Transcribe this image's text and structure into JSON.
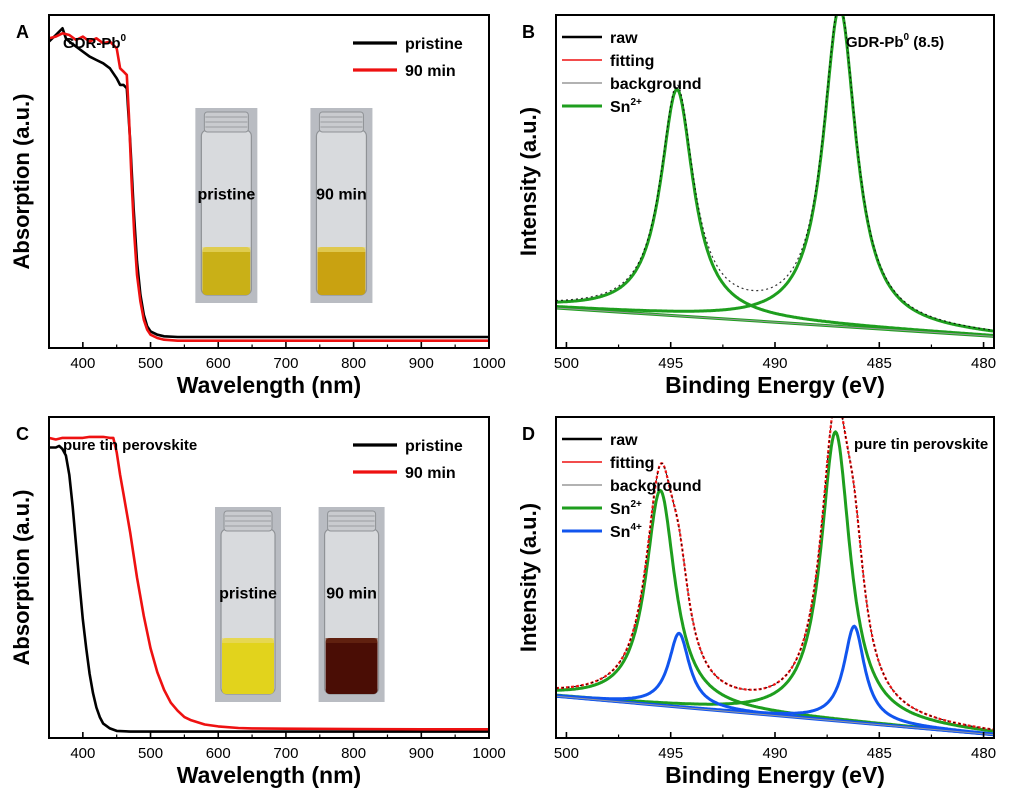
{
  "chart_data": [
    {
      "id": "A",
      "panel_label": "A",
      "type": "line",
      "title": "GDR-Pb",
      "title_sup": "0",
      "xlabel": "Wavelength (nm)",
      "ylabel": "Absorption (a.u.)",
      "xlim": [
        350,
        1000
      ],
      "ylim": [
        0,
        1
      ],
      "x_ticks": [
        400,
        500,
        600,
        700,
        800,
        900,
        1000
      ],
      "legend_position": "top-right",
      "series": [
        {
          "name": "pristine",
          "color": "#000000",
          "points": [
            [
              350,
              0.92
            ],
            [
              360,
              0.94
            ],
            [
              370,
              0.96
            ],
            [
              375,
              0.93
            ],
            [
              380,
              0.92
            ],
            [
              390,
              0.905
            ],
            [
              400,
              0.89
            ],
            [
              410,
              0.875
            ],
            [
              420,
              0.865
            ],
            [
              430,
              0.855
            ],
            [
              440,
              0.84
            ],
            [
              450,
              0.81
            ],
            [
              455,
              0.79
            ],
            [
              460,
              0.79
            ],
            [
              465,
              0.78
            ],
            [
              470,
              0.62
            ],
            [
              475,
              0.42
            ],
            [
              480,
              0.26
            ],
            [
              485,
              0.16
            ],
            [
              490,
              0.1
            ],
            [
              495,
              0.065
            ],
            [
              500,
              0.05
            ],
            [
              510,
              0.04
            ],
            [
              520,
              0.035
            ],
            [
              540,
              0.033
            ],
            [
              600,
              0.033
            ],
            [
              700,
              0.033
            ],
            [
              800,
              0.033
            ],
            [
              900,
              0.033
            ],
            [
              1000,
              0.033
            ]
          ]
        },
        {
          "name": "90 min",
          "color": "#ee1111",
          "points": [
            [
              350,
              0.93
            ],
            [
              360,
              0.935
            ],
            [
              370,
              0.945
            ],
            [
              380,
              0.94
            ],
            [
              390,
              0.925
            ],
            [
              400,
              0.935
            ],
            [
              410,
              0.92
            ],
            [
              420,
              0.93
            ],
            [
              430,
              0.915
            ],
            [
              440,
              0.92
            ],
            [
              450,
              0.9
            ],
            [
              455,
              0.84
            ],
            [
              460,
              0.83
            ],
            [
              465,
              0.82
            ],
            [
              468,
              0.7
            ],
            [
              472,
              0.5
            ],
            [
              476,
              0.34
            ],
            [
              480,
              0.22
            ],
            [
              485,
              0.14
            ],
            [
              490,
              0.085
            ],
            [
              495,
              0.055
            ],
            [
              500,
              0.04
            ],
            [
              510,
              0.03
            ],
            [
              520,
              0.025
            ],
            [
              540,
              0.022
            ],
            [
              600,
              0.022
            ],
            [
              700,
              0.022
            ],
            [
              800,
              0.022
            ],
            [
              900,
              0.022
            ],
            [
              1000,
              0.022
            ]
          ]
        }
      ],
      "vials": [
        {
          "label": "pristine",
          "liquid_color": "#c9b017",
          "dark": false
        },
        {
          "label": "90 min",
          "liquid_color": "#c9a211",
          "dark": false
        }
      ]
    },
    {
      "id": "B",
      "panel_label": "B",
      "type": "line",
      "title": "GDR-Pb",
      "title_sup": "0",
      "title_suffix": " (8.5)",
      "xlabel": "Binding Energy (eV)",
      "ylabel": "Intensity (a.u.)",
      "xlim": [
        500.5,
        479.5
      ],
      "ylim": [
        0,
        1
      ],
      "x_ticks": [
        500,
        495,
        490,
        485,
        480
      ],
      "legend_position": "top-left",
      "legend": [
        {
          "name": "raw",
          "sup": "",
          "color": "#000000",
          "width": 2.5
        },
        {
          "name": "fitting",
          "sup": "",
          "color": "#ee1111",
          "width": 1.5
        },
        {
          "name": "background",
          "sup": "",
          "color": "#999999",
          "width": 1.5
        },
        {
          "name": "Sn",
          "sup": "2+",
          "color": "#1e9e1e",
          "width": 3
        }
      ],
      "background": {
        "x1": 500.5,
        "y1": 0.12,
        "x2": 479.5,
        "y2": 0.035
      },
      "peaks": [
        {
          "component": "Sn2+",
          "center": 494.7,
          "height": 0.68,
          "width": 0.95,
          "color": "#1e9e1e"
        },
        {
          "component": "Sn2+",
          "center": 486.9,
          "height": 0.96,
          "width": 0.95,
          "color": "#1e9e1e"
        }
      ]
    },
    {
      "id": "C",
      "panel_label": "C",
      "type": "line",
      "title": "pure tin perovskite",
      "xlabel": "Wavelength (nm)",
      "ylabel": "Absorption (a.u.)",
      "xlim": [
        350,
        1000
      ],
      "ylim": [
        0,
        1
      ],
      "x_ticks": [
        400,
        500,
        600,
        700,
        800,
        900,
        1000
      ],
      "legend_position": "top-right",
      "series": [
        {
          "name": "pristine",
          "color": "#000000",
          "points": [
            [
              350,
              0.905
            ],
            [
              360,
              0.905
            ],
            [
              365,
              0.91
            ],
            [
              370,
              0.9
            ],
            [
              375,
              0.88
            ],
            [
              380,
              0.82
            ],
            [
              385,
              0.72
            ],
            [
              390,
              0.6
            ],
            [
              395,
              0.48
            ],
            [
              400,
              0.37
            ],
            [
              405,
              0.28
            ],
            [
              410,
              0.2
            ],
            [
              415,
              0.14
            ],
            [
              420,
              0.095
            ],
            [
              425,
              0.065
            ],
            [
              430,
              0.045
            ],
            [
              440,
              0.03
            ],
            [
              450,
              0.022
            ],
            [
              470,
              0.02
            ],
            [
              500,
              0.02
            ],
            [
              600,
              0.02
            ],
            [
              700,
              0.02
            ],
            [
              800,
              0.02
            ],
            [
              900,
              0.02
            ],
            [
              1000,
              0.02
            ]
          ]
        },
        {
          "name": "90 min",
          "color": "#ee1111",
          "points": [
            [
              350,
              0.935
            ],
            [
              360,
              0.93
            ],
            [
              370,
              0.935
            ],
            [
              380,
              0.935
            ],
            [
              390,
              0.935
            ],
            [
              400,
              0.935
            ],
            [
              410,
              0.938
            ],
            [
              420,
              0.938
            ],
            [
              430,
              0.938
            ],
            [
              440,
              0.935
            ],
            [
              445,
              0.935
            ],
            [
              450,
              0.89
            ],
            [
              455,
              0.82
            ],
            [
              460,
              0.76
            ],
            [
              470,
              0.64
            ],
            [
              480,
              0.5
            ],
            [
              490,
              0.38
            ],
            [
              500,
              0.28
            ],
            [
              510,
              0.205
            ],
            [
              520,
              0.15
            ],
            [
              530,
              0.11
            ],
            [
              540,
              0.085
            ],
            [
              550,
              0.065
            ],
            [
              560,
              0.055
            ],
            [
              580,
              0.042
            ],
            [
              600,
              0.036
            ],
            [
              630,
              0.031
            ],
            [
              650,
              0.03
            ],
            [
              700,
              0.029
            ],
            [
              800,
              0.028
            ],
            [
              900,
              0.027
            ],
            [
              1000,
              0.027
            ]
          ]
        }
      ],
      "vials": [
        {
          "label": "pristine",
          "liquid_color": "#e2d31c",
          "dark": false
        },
        {
          "label": "90 min",
          "liquid_color": "#4a0d05",
          "dark": true
        }
      ]
    },
    {
      "id": "D",
      "panel_label": "D",
      "type": "line",
      "title": "pure tin perovskite",
      "xlabel": "Binding Energy (eV)",
      "ylabel": "Intensity (a.u.)",
      "xlim": [
        500.5,
        479.5
      ],
      "ylim": [
        0,
        1
      ],
      "x_ticks": [
        500,
        495,
        490,
        485,
        480
      ],
      "legend_position": "top-left",
      "legend": [
        {
          "name": "raw",
          "sup": "",
          "color": "#000000",
          "width": 2.5
        },
        {
          "name": "fitting",
          "sup": "",
          "color": "#ee1111",
          "width": 1.5
        },
        {
          "name": "background",
          "sup": "",
          "color": "#999999",
          "width": 1.5
        },
        {
          "name": "Sn",
          "sup": "2+",
          "color": "#1e9e1e",
          "width": 3
        },
        {
          "name": "Sn",
          "sup": "4+",
          "color": "#1155ee",
          "width": 3
        }
      ],
      "background": {
        "x1": 500.5,
        "y1": 0.13,
        "x2": 479.5,
        "y2": 0.01
      },
      "peaks": [
        {
          "component": "Sn2+",
          "center": 495.5,
          "height": 0.67,
          "width": 0.85,
          "color": "#1e9e1e"
        },
        {
          "component": "Sn2+",
          "center": 487.1,
          "height": 0.9,
          "width": 0.85,
          "color": "#1e9e1e"
        },
        {
          "component": "Sn4+",
          "center": 494.6,
          "height": 0.23,
          "width": 0.6,
          "color": "#1155ee"
        },
        {
          "component": "Sn4+",
          "center": 486.2,
          "height": 0.3,
          "width": 0.6,
          "color": "#1155ee"
        }
      ]
    }
  ]
}
